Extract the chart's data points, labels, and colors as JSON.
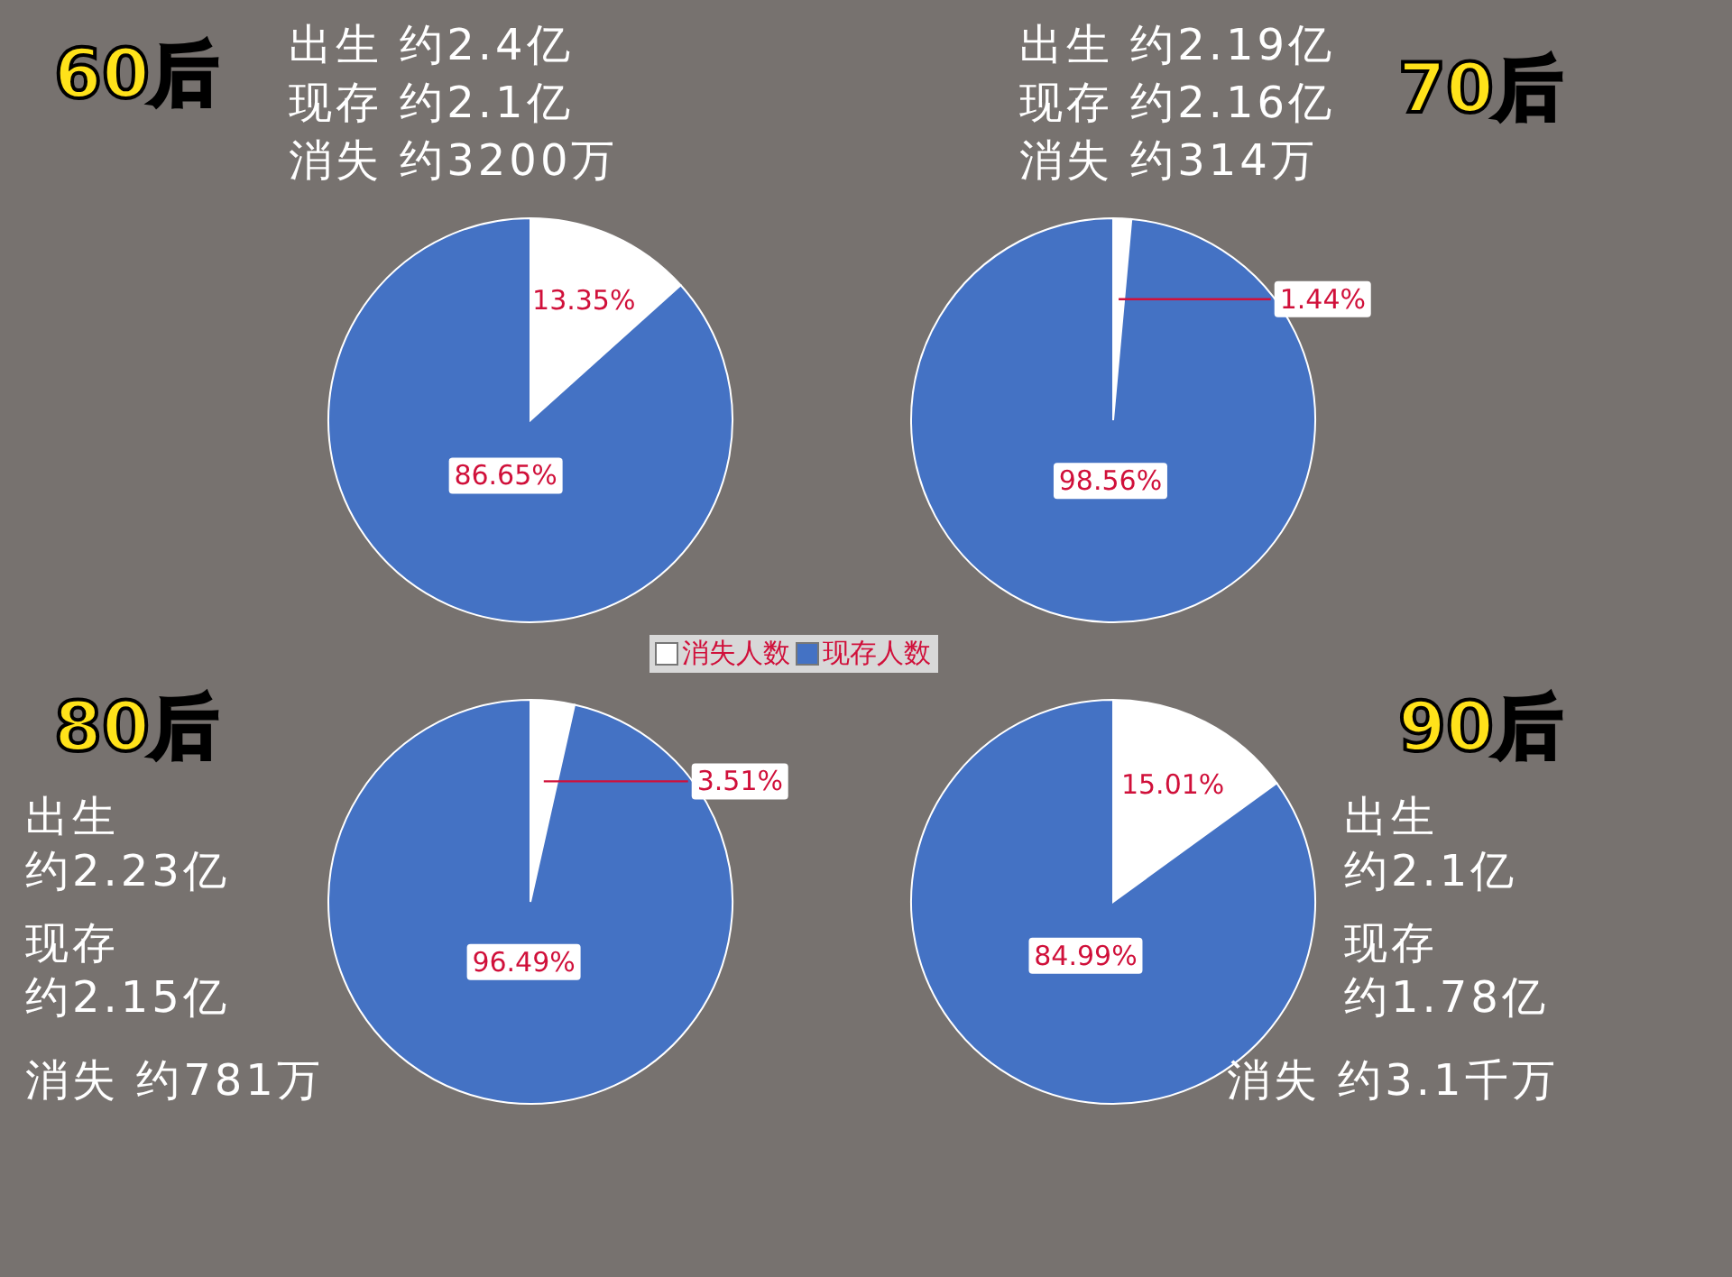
{
  "chart_data": [
    {
      "type": "pie",
      "title": "60后",
      "annotations": [
        "出生 约2.4亿",
        "现存 约2.1亿",
        "消失 约3200万"
      ],
      "categories": [
        "消失人数",
        "现存人数"
      ],
      "values": [
        13.35,
        86.65
      ],
      "colors": [
        "#ffffff",
        "#4472c4"
      ],
      "value_labels": [
        "13.35%",
        "86.65%"
      ],
      "legend": "bottom"
    },
    {
      "type": "pie",
      "title": "70后",
      "annotations": [
        "出生 约2.19亿",
        "现存 约2.16亿",
        "消失 约314万"
      ],
      "categories": [
        null,
        null
      ],
      "values": [
        1.44,
        98.56
      ],
      "colors": [
        "#ffffff",
        "#4472c4"
      ],
      "value_labels": [
        "1.44%",
        "98.56%"
      ]
    },
    {
      "type": "pie",
      "title": "80后",
      "annotations": [
        "出生",
        "约2.23亿",
        "现存",
        "约2.15亿",
        "消失 约781万"
      ],
      "categories": [
        null,
        null
      ],
      "values": [
        3.51,
        96.49
      ],
      "colors": [
        "#ffffff",
        "#4472c4"
      ],
      "value_labels": [
        "3.51%",
        "96.49%"
      ]
    },
    {
      "type": "pie",
      "title": "90后",
      "annotations": [
        "出生",
        "约2.1亿",
        "现存",
        "约1.78亿",
        "消失 约3.1千万"
      ],
      "categories": [
        null,
        null
      ],
      "values": [
        15.01,
        84.99
      ],
      "colors": [
        "#ffffff",
        "#4472c4"
      ],
      "value_labels": [
        "15.01%",
        "84.99%"
      ]
    }
  ]
}
